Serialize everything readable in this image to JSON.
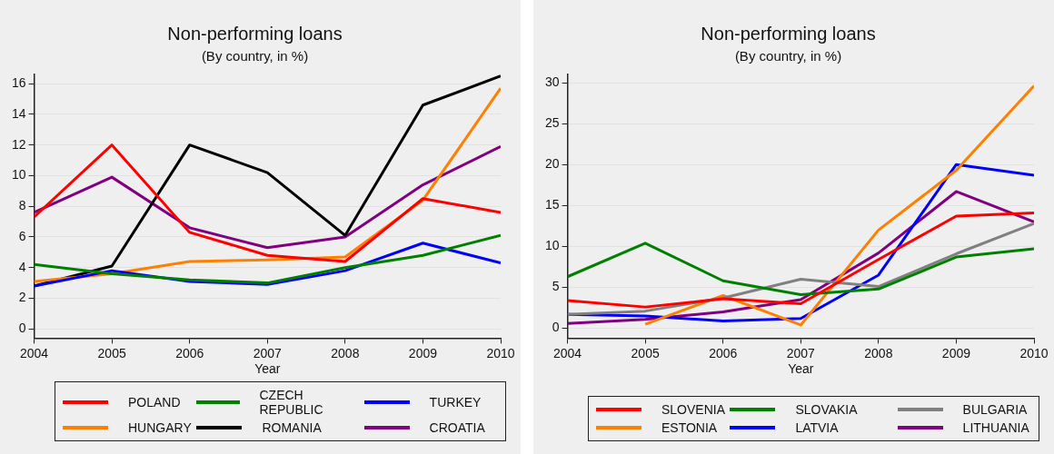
{
  "chart_data": [
    {
      "type": "line",
      "title": "Non-performing loans",
      "subtitle": "(By country, in %)",
      "xlabel": "Year",
      "x": [
        2004,
        2005,
        2006,
        2007,
        2008,
        2009,
        2010
      ],
      "xlim": [
        2004,
        2010
      ],
      "xticks": [
        2004,
        2005,
        2006,
        2007,
        2008,
        2009,
        2010
      ],
      "ylim": [
        -0.6,
        16.6
      ],
      "yticks": [
        0,
        2,
        4,
        6,
        8,
        10,
        12,
        14,
        16
      ],
      "grid": "y",
      "legend": "bottom",
      "marker": "none",
      "line_style": "solid",
      "series": [
        {
          "name": "POLAND",
          "color": "#ff0000",
          "values": [
            7.3,
            12.0,
            6.3,
            4.8,
            4.4,
            8.5,
            7.6
          ]
        },
        {
          "name": "CZECH REPUBLIC",
          "color": "#008000",
          "values": [
            4.2,
            3.6,
            3.2,
            3.0,
            4.0,
            4.8,
            6.1
          ]
        },
        {
          "name": "TURKEY",
          "color": "#0000ff",
          "values": [
            2.8,
            3.8,
            3.1,
            2.9,
            3.8,
            5.6,
            4.3
          ]
        },
        {
          "name": "HUNGARY",
          "color": "#ff8000",
          "values": [
            3.1,
            3.6,
            4.4,
            4.5,
            4.7,
            8.4,
            15.7
          ]
        },
        {
          "name": "ROMANIA",
          "color": "#000000",
          "values": [
            2.8,
            4.1,
            12.0,
            10.2,
            6.1,
            14.6,
            16.5
          ]
        },
        {
          "name": "CROATIA",
          "color": "#800080",
          "values": [
            7.6,
            9.9,
            6.6,
            5.3,
            6.0,
            9.4,
            11.9
          ]
        }
      ]
    },
    {
      "type": "line",
      "title": "Non-performing loans",
      "subtitle": "(By country, in %)",
      "xlabel": "Year",
      "x": [
        2004,
        2005,
        2006,
        2007,
        2008,
        2009,
        2010
      ],
      "xlim": [
        2004,
        2010
      ],
      "xticks": [
        2004,
        2005,
        2006,
        2007,
        2008,
        2009,
        2010
      ],
      "ylim": [
        -1.2,
        31
      ],
      "yticks": [
        0,
        5,
        10,
        15,
        20,
        25,
        30
      ],
      "grid": "y",
      "legend": "bottom",
      "marker": "none",
      "line_style": "solid",
      "series": [
        {
          "name": "SLOVENIA",
          "color": "#ff0000",
          "values": [
            3.4,
            2.6,
            3.6,
            3.0,
            8.4,
            13.7,
            14.1
          ]
        },
        {
          "name": "SLOVAKIA",
          "color": "#008000",
          "values": [
            6.3,
            10.4,
            5.8,
            4.1,
            4.8,
            8.7,
            9.7
          ]
        },
        {
          "name": "BULGARIA",
          "color": "#808080",
          "values": [
            1.7,
            2.1,
            3.7,
            6.0,
            5.1,
            9.1,
            12.8
          ]
        },
        {
          "name": "ESTONIA",
          "color": "#ff8000",
          "values": [
            null,
            0.5,
            4.0,
            0.4,
            12.0,
            19.3,
            29.6
          ]
        },
        {
          "name": "LATVIA",
          "color": "#0000ff",
          "values": [
            1.7,
            1.5,
            0.9,
            1.2,
            6.5,
            20.0,
            18.7
          ]
        },
        {
          "name": "LITHUANIA",
          "color": "#800080",
          "values": [
            0.6,
            1.1,
            2.0,
            3.5,
            9.2,
            16.7,
            13.0
          ]
        }
      ]
    }
  ]
}
